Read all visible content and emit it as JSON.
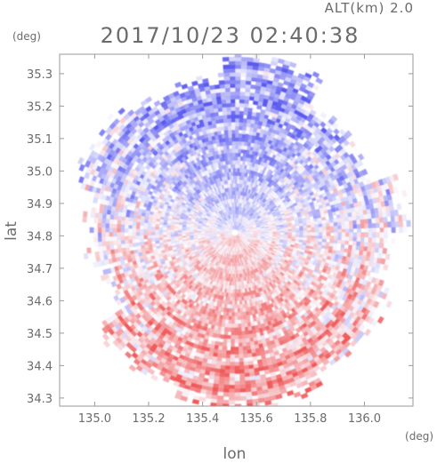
{
  "header": {
    "alt_label": "ALT(km) 2.0",
    "timestamp": "2017/10/23 02:40:38"
  },
  "chart_data": {
    "type": "heatmap",
    "title": "2017/10/23 02:40:38",
    "xlabel": "lon",
    "ylabel": "lat",
    "x_unit": "(deg)",
    "y_unit": "(deg)",
    "xlim": [
      134.87,
      136.18
    ],
    "ylim": [
      34.275,
      35.36
    ],
    "x_ticks": [
      "135.0",
      "135.2",
      "135.4",
      "135.6",
      "135.8",
      "136.0"
    ],
    "x_tick_values": [
      135.0,
      135.2,
      135.4,
      135.6,
      135.8,
      136.0
    ],
    "y_ticks": [
      "34.3",
      "34.4",
      "34.5",
      "34.6",
      "34.7",
      "34.8",
      "34.9",
      "35.0",
      "35.1",
      "35.2",
      "35.3"
    ],
    "y_tick_values": [
      34.3,
      34.4,
      34.5,
      34.6,
      34.7,
      34.8,
      34.9,
      35.0,
      35.1,
      35.2,
      35.3
    ],
    "radar_center": {
      "lon": 135.52,
      "lat": 34.81
    },
    "colormap": {
      "negative": "#5a5af0",
      "zero": "#ffffff",
      "positive": "#f05a5a"
    },
    "grid": false
  }
}
